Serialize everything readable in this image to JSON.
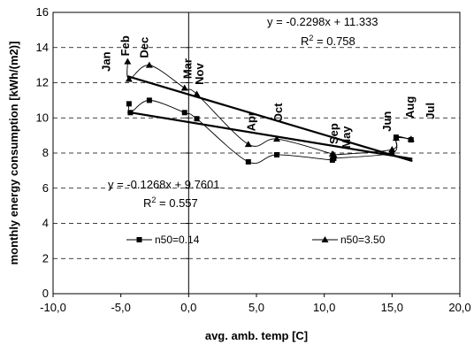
{
  "chart_data": {
    "type": "scatter",
    "xlabel": "avg. amb. temp [C]",
    "ylabel": "monthly energy consumption [kWh/(m2)]",
    "xlim": [
      -10,
      20
    ],
    "ylim": [
      0,
      16
    ],
    "x_ticks": [
      -10,
      -5,
      0,
      5,
      10,
      15,
      20
    ],
    "x_tick_labels": [
      "-10,0",
      "-5,0",
      "0,0",
      "5,0",
      "10,0",
      "15,0",
      "20,0"
    ],
    "y_ticks": [
      0,
      2,
      4,
      6,
      8,
      10,
      12,
      14,
      16
    ],
    "y_tick_labels": [
      "0",
      "2",
      "4",
      "6",
      "8",
      "10",
      "12",
      "14",
      "16"
    ],
    "grid": "horizontal dashed",
    "series": [
      {
        "name": "n50=0.14",
        "marker": "square",
        "color": "#000000",
        "points": [
          {
            "x": -4.4,
            "y": 10.8
          },
          {
            "x": -4.3,
            "y": 10.3
          },
          {
            "x": -2.9,
            "y": 11.0
          },
          {
            "x": -0.3,
            "y": 10.3
          },
          {
            "x": 0.6,
            "y": 9.95
          },
          {
            "x": 4.4,
            "y": 7.5
          },
          {
            "x": 6.5,
            "y": 7.9
          },
          {
            "x": 10.6,
            "y": 7.6
          },
          {
            "x": 10.7,
            "y": 7.7
          },
          {
            "x": 15.0,
            "y": 8.0
          },
          {
            "x": 15.3,
            "y": 8.9
          },
          {
            "x": 16.4,
            "y": 8.75
          }
        ]
      },
      {
        "name": "n50=3.50",
        "marker": "triangle",
        "color": "#000000",
        "points": [
          {
            "x": -4.5,
            "y": 13.2
          },
          {
            "x": -4.4,
            "y": 12.2
          },
          {
            "x": -2.9,
            "y": 13.0
          },
          {
            "x": -0.3,
            "y": 11.7
          },
          {
            "x": 0.6,
            "y": 11.35
          },
          {
            "x": 4.4,
            "y": 8.5
          },
          {
            "x": 6.5,
            "y": 8.8
          },
          {
            "x": 10.6,
            "y": 7.95
          },
          {
            "x": 10.7,
            "y": 7.9
          },
          {
            "x": 15.0,
            "y": 8.2
          },
          {
            "x": 15.3,
            "y": 8.85
          },
          {
            "x": 16.4,
            "y": 8.8
          }
        ]
      }
    ],
    "trendlines": [
      {
        "series": "n50=3.50",
        "slope": -0.2298,
        "intercept": 11.333,
        "x_range": [
          -4.5,
          16.5
        ],
        "equation": "y = -0.2298x + 11.333",
        "r2_label": "R",
        "r2_sup": "2",
        "r2_value": " = 0.758"
      },
      {
        "series": "n50=0.14",
        "slope": -0.1268,
        "intercept": 9.7601,
        "x_range": [
          -4.5,
          16.5
        ],
        "equation": "y = -0.1268x + 9.7601",
        "r2_label": "R",
        "r2_sup": "2",
        "r2_value": " = 0.557"
      }
    ],
    "month_labels": [
      {
        "text": "Jan",
        "x": -5.8,
        "y": 13.2
      },
      {
        "text": "Feb",
        "x": -4.4,
        "y": 14.1
      },
      {
        "text": "Dec",
        "x": -3.0,
        "y": 14.0
      },
      {
        "text": "Mar",
        "x": 0.2,
        "y": 12.8
      },
      {
        "text": "Nov",
        "x": 1.1,
        "y": 12.5
      },
      {
        "text": "Apr",
        "x": 4.9,
        "y": 9.8
      },
      {
        "text": "Oct",
        "x": 6.9,
        "y": 10.3
      },
      {
        "text": "Sep",
        "x": 11.0,
        "y": 9.1
      },
      {
        "text": "May",
        "x": 11.9,
        "y": 8.9
      },
      {
        "text": "Jun",
        "x": 14.9,
        "y": 9.8
      },
      {
        "text": "Aug",
        "x": 16.6,
        "y": 10.6
      },
      {
        "text": "Jul",
        "x": 18.1,
        "y": 10.4
      }
    ],
    "legend": [
      {
        "label": "n50=0.14",
        "marker": "square"
      },
      {
        "label": "n50=3.50",
        "marker": "triangle"
      }
    ]
  }
}
